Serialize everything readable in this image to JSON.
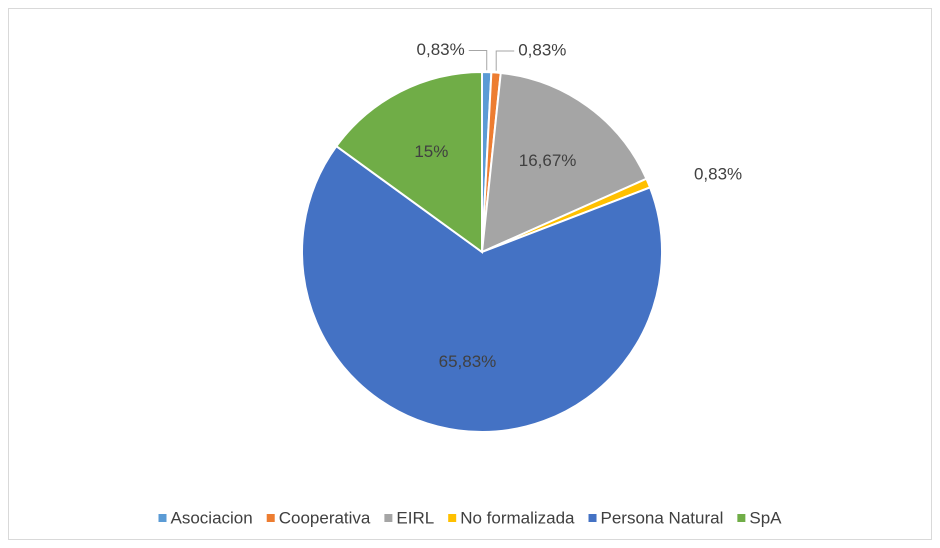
{
  "chart_data": {
    "type": "pie",
    "categories": [
      "Asociacion",
      "Cooperativa",
      "EIRL",
      "No formalizada",
      "Persona Natural",
      "SpA"
    ],
    "values": [
      0.83,
      0.83,
      16.67,
      0.83,
      65.83,
      15
    ],
    "value_labels": [
      "0,83%",
      "0,83%",
      "16,67%",
      "0,83%",
      "65,83%",
      "15%"
    ],
    "colors": [
      "#5b9bd5",
      "#ed7d31",
      "#a5a5a5",
      "#ffc000",
      "#4472c4",
      "#70ad47"
    ],
    "legend": "bottom"
  }
}
